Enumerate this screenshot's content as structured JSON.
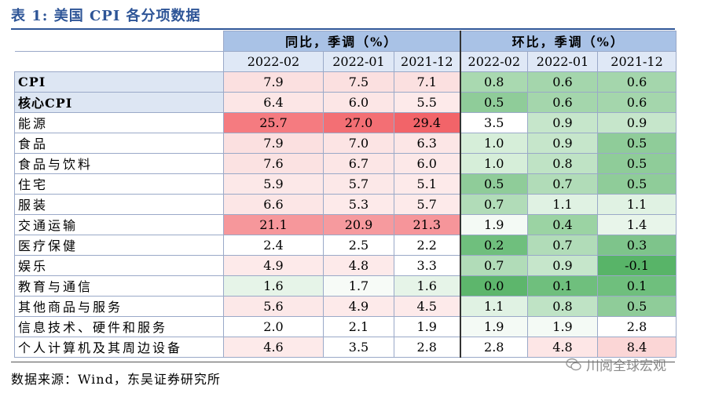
{
  "title": "表 1:  美国 CPI 各分项数据",
  "groups": {
    "yoy": "同比，季调（%）",
    "mom": "环比，季调（%）"
  },
  "dates": [
    "2022-02",
    "2022-01",
    "2021-12",
    "2022-02",
    "2022-01",
    "2021-12"
  ],
  "rows": [
    {
      "name": "CPI",
      "values": [
        "7.9",
        "7.5",
        "7.1",
        "0.8",
        "0.6",
        "0.6"
      ]
    },
    {
      "name": "核心CPI",
      "values": [
        "6.4",
        "6.0",
        "5.5",
        "0.5",
        "0.6",
        "0.6"
      ]
    },
    {
      "name": "能源",
      "values": [
        "25.7",
        "27.0",
        "29.4",
        "3.5",
        "0.9",
        "0.9"
      ]
    },
    {
      "name": "食品",
      "values": [
        "7.9",
        "7.0",
        "6.3",
        "1.0",
        "0.9",
        "0.5"
      ]
    },
    {
      "name": "食品与饮料",
      "values": [
        "7.6",
        "6.7",
        "6.0",
        "1.0",
        "0.8",
        "0.5"
      ]
    },
    {
      "name": "住宅",
      "values": [
        "5.9",
        "5.7",
        "5.1",
        "0.5",
        "0.7",
        "0.5"
      ]
    },
    {
      "name": "服装",
      "values": [
        "6.6",
        "5.3",
        "5.7",
        "0.7",
        "1.1",
        "1.1"
      ]
    },
    {
      "name": "交通运输",
      "values": [
        "21.1",
        "20.9",
        "21.3",
        "1.9",
        "0.4",
        "1.4"
      ]
    },
    {
      "name": "医疗保健",
      "values": [
        "2.4",
        "2.5",
        "2.2",
        "0.2",
        "0.7",
        "0.3"
      ]
    },
    {
      "name": "娱乐",
      "values": [
        "4.9",
        "4.8",
        "3.3",
        "0.7",
        "0.9",
        "-0.1"
      ]
    },
    {
      "name": "教育与通信",
      "values": [
        "1.6",
        "1.7",
        "1.6",
        "0.0",
        "0.1",
        "0.1"
      ]
    },
    {
      "name": "其他商品与服务",
      "values": [
        "5.6",
        "4.9",
        "4.5",
        "1.1",
        "0.8",
        "0.5"
      ]
    },
    {
      "name": "信息技术、硬件和服务",
      "values": [
        "2.0",
        "2.1",
        "1.9",
        "1.9",
        "1.9",
        "2.8"
      ]
    },
    {
      "name": "个人计算机及其周边设备",
      "values": [
        "4.6",
        "3.5",
        "2.8",
        "2.8",
        "4.8",
        "8.4"
      ]
    }
  ],
  "colors": [
    [
      "#fbe0e0",
      "#fbe0e0",
      "#fbe0e0",
      "#a9d9b0",
      "#a4d6ac",
      "#a4d6ac"
    ],
    [
      "#fce6e6",
      "#fce6e6",
      "#fdeaea",
      "#8fcc99",
      "#a4d6ac",
      "#a4d6ac"
    ],
    [
      "#f57b80",
      "#f36f74",
      "#f26469",
      "#ffffff",
      "#c6e6cb",
      "#c6e6cb"
    ],
    [
      "#fbe0e0",
      "#fce4e4",
      "#fce6e6",
      "#d6eed9",
      "#c6e6cb",
      "#8fcc99"
    ],
    [
      "#fbe2e2",
      "#fce6e6",
      "#fce8e8",
      "#d6eed9",
      "#bfe3c5",
      "#8fcc99"
    ],
    [
      "#fce8e8",
      "#fce8e8",
      "#fdeaea",
      "#8fcc99",
      "#b1dcb8",
      "#8fcc99"
    ],
    [
      "#fce6e6",
      "#fdeaea",
      "#fdeaea",
      "#b1dcb8",
      "#e0f2e3",
      "#e0f2e3"
    ],
    [
      "#f6979b",
      "#f69a9e",
      "#f6959a",
      "#f4faf5",
      "#9bd3a3",
      "#e8f5ea"
    ],
    [
      "#ffffff",
      "#ffffff",
      "#ffffff",
      "#6fbf7d",
      "#b1dcb8",
      "#7ec48b"
    ],
    [
      "#fdeaea",
      "#fdeaea",
      "#ffffff",
      "#b1dcb8",
      "#c6e6cb",
      "#58b468"
    ],
    [
      "#e6f4e8",
      "#f7fbf7",
      "#e6f4e8",
      "#5db66c",
      "#6fbf7d",
      "#6fbf7d"
    ],
    [
      "#fce8e8",
      "#fdeaea",
      "#fdeaea",
      "#e0f2e3",
      "#bfe3c5",
      "#8fcc99"
    ],
    [
      "#ffffff",
      "#ffffff",
      "#ffffff",
      "#f4faf5",
      "#f4faf5",
      "#ffffff"
    ],
    [
      "#fdeaea",
      "#ffffff",
      "#ffffff",
      "#ffffff",
      "#fde6e6",
      "#fbd6d6"
    ]
  ],
  "source": "数据来源：Wind，东吴证券研究所",
  "watermark": "川阅全球宏观"
}
